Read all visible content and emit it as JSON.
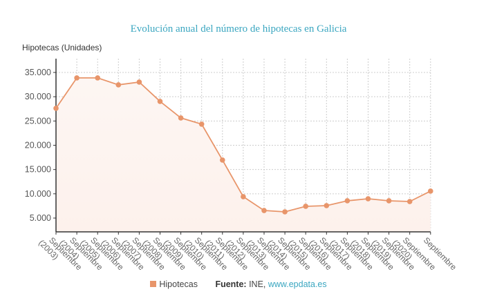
{
  "title": "Evolución anual del número de hipotecas en Galicia",
  "colors": {
    "title": "#3aa6c0",
    "series": "#e8956a",
    "fill": "#fdf1ec",
    "grid": "#cccccc",
    "link": "#3aa6c0"
  },
  "legend": {
    "series_label": "Hipotecas",
    "source_label": "Fuente:",
    "source_text": "INE,",
    "source_link": "www.epdata.es"
  },
  "chart_data": {
    "type": "area",
    "title": "Evolución anual del número de hipotecas en Galicia",
    "xlabel": "",
    "ylabel": "Hipotecas (Unidades)",
    "categories": [
      "Septiembre (2003)",
      "Septiembre (2004)",
      "Septiembre (2005)",
      "Septiembre (2006)",
      "Septiembre (2007)",
      "Septiembre (2008)",
      "Septiembre (2009)",
      "Septiembre (2010)",
      "Septiembre (2011)",
      "Septiembre (2012)",
      "Septiembre (2013)",
      "Septiembre (2014)",
      "Septiembre (2015)",
      "Septiembre (2016)",
      "Septiembre (2017)",
      "Septiembre (2018)",
      "Septiembre (2019)",
      "Septiembre (2020)",
      "Septiembre"
    ],
    "series": [
      {
        "name": "Hipotecas",
        "values": [
          27620,
          33880,
          33880,
          32450,
          33020,
          29040,
          25630,
          24350,
          16950,
          9400,
          6560,
          6280,
          7420,
          7560,
          8560,
          8980,
          8560,
          8410,
          10550
        ]
      }
    ],
    "yticks": [
      5000,
      10000,
      15000,
      20000,
      25000,
      30000,
      35000
    ],
    "ytick_labels": [
      "5.000",
      "10.000",
      "15.000",
      "20.000",
      "25.000",
      "30.000",
      "35.000"
    ],
    "ylim": [
      2900,
      37800
    ],
    "grid": true,
    "legend_position": "bottom"
  }
}
